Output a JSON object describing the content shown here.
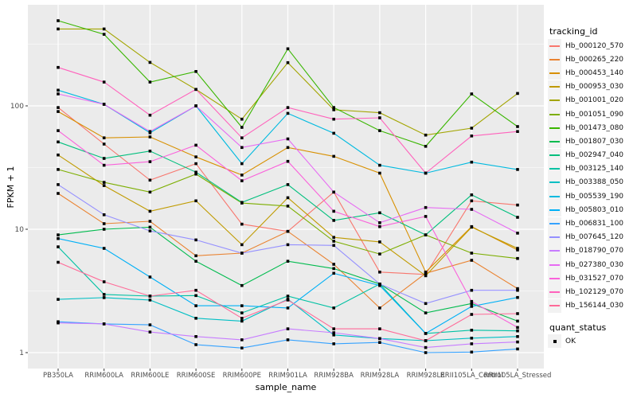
{
  "figure": {
    "ylabel": "FPKM + 1",
    "xlabel": "sample_name"
  },
  "legend": {
    "tracking_title": "tracking_id",
    "quant_title": "quant_status",
    "quant_items": [
      {
        "label": "OK",
        "marker": "black-square"
      }
    ]
  },
  "chart_data": {
    "type": "line",
    "title": "",
    "xlabel": "sample_name",
    "ylabel": "FPKM + 1",
    "y_scale": "log10",
    "ylim": [
      0.93,
      660
    ],
    "y_ticks": [
      1,
      10,
      100
    ],
    "y_minor_ticks": [
      3.162,
      31.62,
      316.2
    ],
    "grid": "on",
    "legend_position": "right",
    "panel_background": "#EBEBEB",
    "gridline_color": "#FFFFFF",
    "tick_label_color": "#4D4D4D",
    "marker": {
      "shape": "square",
      "color": "#000000",
      "status_label": "OK"
    },
    "categories": [
      "PB350LA",
      "RRIM600LA",
      "RRIM600LE",
      "RRIM600SE",
      "RRIM600PE",
      "RRIM901LA",
      "RRIM928BA",
      "RRIM928LA",
      "RRIM928LE",
      "RRII105LA_Control",
      "RRII105LA_Stressed"
    ],
    "series": [
      {
        "name": "Hb_000120_570",
        "color": "#F8766D",
        "values": [
          97,
          49,
          25,
          34,
          11,
          9.6,
          20,
          4.5,
          4.3,
          17,
          15.7
        ]
      },
      {
        "name": "Hb_000265_220",
        "color": "#EA8331",
        "values": [
          19.5,
          11.1,
          11.6,
          6.1,
          6.4,
          9.6,
          5.2,
          2.3,
          4.4,
          5.6,
          3.3
        ]
      },
      {
        "name": "Hb_000453_140",
        "color": "#D89000",
        "values": [
          90,
          55,
          56,
          38.6,
          27.5,
          46,
          39,
          28.5,
          4.5,
          10.5,
          6.8
        ]
      },
      {
        "name": "Hb_000953_030",
        "color": "#C09B00",
        "values": [
          40,
          22.6,
          14,
          17,
          7.5,
          18,
          8.6,
          7.9,
          4.2,
          10.4,
          7.0
        ]
      },
      {
        "name": "Hb_001001_020",
        "color": "#A3A500",
        "values": [
          420,
          420,
          225,
          136,
          78,
          224,
          93,
          88,
          58,
          66,
          126
        ]
      },
      {
        "name": "Hb_001051_090",
        "color": "#7CAE00",
        "values": [
          30.5,
          24,
          20,
          28,
          16.3,
          15.4,
          8.0,
          6.3,
          9.0,
          6.4,
          5.8
        ]
      },
      {
        "name": "Hb_001473_080",
        "color": "#39B600",
        "values": [
          490,
          380,
          156,
          190,
          67,
          290,
          97,
          63,
          47,
          125,
          68
        ]
      },
      {
        "name": "Hb_001807_030",
        "color": "#00BB4E",
        "values": [
          9.0,
          10,
          10.4,
          5.5,
          3.5,
          5.5,
          4.8,
          3.6,
          2.1,
          2.5,
          1.8
        ]
      },
      {
        "name": "Hb_002947_040",
        "color": "#00BF7D",
        "values": [
          51,
          37.5,
          43,
          29,
          16.5,
          23,
          11.8,
          13.6,
          9.0,
          19,
          12.5
        ]
      },
      {
        "name": "Hb_003125_140",
        "color": "#00C1A3",
        "values": [
          7.2,
          2.96,
          2.87,
          2.9,
          2.1,
          2.87,
          2.3,
          3.6,
          1.43,
          1.52,
          1.5
        ]
      },
      {
        "name": "Hb_003388_050",
        "color": "#00BFC4",
        "values": [
          2.7,
          2.79,
          2.67,
          1.9,
          1.8,
          2.71,
          1.39,
          1.3,
          1.25,
          1.31,
          1.35
        ]
      },
      {
        "name": "Hb_005539_190",
        "color": "#00BAE0",
        "values": [
          134,
          103,
          60.5,
          100,
          34,
          87,
          60,
          33,
          28.5,
          35,
          30.5
        ]
      },
      {
        "name": "Hb_005803_010",
        "color": "#00B0F6",
        "values": [
          8.4,
          7.0,
          4.1,
          2.4,
          2.4,
          2.3,
          4.4,
          3.5,
          1.43,
          2.37,
          2.8
        ]
      },
      {
        "name": "Hb_006831_100",
        "color": "#35A2FF",
        "values": [
          1.78,
          1.71,
          1.68,
          1.16,
          1.09,
          1.27,
          1.18,
          1.21,
          1.0,
          1.01,
          1.07
        ]
      },
      {
        "name": "Hb_007645_120",
        "color": "#9590FF",
        "values": [
          23,
          13.1,
          9.7,
          8.2,
          6.4,
          7.5,
          7.4,
          3.6,
          2.5,
          3.2,
          3.2
        ]
      },
      {
        "name": "Hb_018790_070",
        "color": "#C77CFF",
        "values": [
          1.74,
          1.71,
          1.47,
          1.35,
          1.27,
          1.56,
          1.45,
          1.3,
          1.1,
          1.18,
          1.22
        ]
      },
      {
        "name": "Hb_027380_030",
        "color": "#E76BF3",
        "values": [
          125,
          103,
          62,
          100,
          46,
          54,
          20,
          11.3,
          15,
          14.5,
          9.3
        ]
      },
      {
        "name": "Hb_031527_070",
        "color": "#FA62DB",
        "values": [
          63,
          33,
          35.3,
          48,
          24.7,
          35.5,
          14,
          10.5,
          12.7,
          2.6,
          1.6
        ]
      },
      {
        "name": "Hb_102129_070",
        "color": "#FF62BC",
        "values": [
          205,
          156,
          84,
          136,
          55,
          97,
          78,
          80,
          28.5,
          57,
          62
        ]
      },
      {
        "name": "Hb_156144_030",
        "color": "#FF6A98",
        "values": [
          5.4,
          3.75,
          2.87,
          3.2,
          1.9,
          2.67,
          1.56,
          1.56,
          1.25,
          2.04,
          2.07
        ]
      }
    ]
  }
}
